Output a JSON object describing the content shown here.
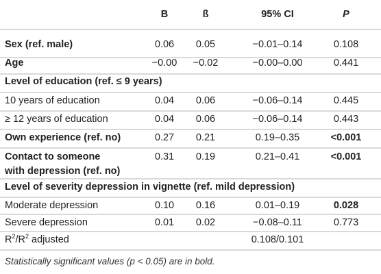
{
  "header": {
    "col_b": "B",
    "col_beta": "ß",
    "col_ci": "95% CI",
    "col_p": "P"
  },
  "rows": [
    {
      "label": "Sex (ref. male)",
      "b": "0.06",
      "beta": "0.05",
      "ci": "−0.01–0.14",
      "p": "0.108"
    },
    {
      "label": "Age",
      "b": "−0.00",
      "beta": "−0.02",
      "ci": "−0.00–0.00",
      "p": "0.441"
    },
    {
      "label": "Level of education (ref. ≤ 9 years)"
    },
    {
      "label": "10 years of education",
      "b": "0.04",
      "beta": "0.06",
      "ci": "−0.06–0.14",
      "p": "0.445"
    },
    {
      "label": "≥ 12 years of education",
      "b": "0.04",
      "beta": "0.06",
      "ci": "−0.06–0.14",
      "p": "0.443"
    },
    {
      "label": "Own experience (ref. no)",
      "b": "0.27",
      "beta": "0.21",
      "ci": "0.19–0.35",
      "p": "<0.001"
    },
    {
      "label_line1": "Contact to someone",
      "label_line2": "with depression (ref. no)",
      "b": "0.31",
      "beta": "0.19",
      "ci": "0.21–0.41",
      "p": "<0.001"
    },
    {
      "label": "Level of severity depression in vignette (ref. mild depression)"
    },
    {
      "label": "Moderate depression",
      "b": "0.10",
      "beta": "0.16",
      "ci": "0.01–0.19",
      "p": "0.028"
    },
    {
      "label": "Severe depression",
      "b": "0.01",
      "beta": "0.02",
      "ci": "−0.08–0.11",
      "p": "0.773"
    },
    {
      "label_base": "R",
      "label_sup": "2",
      "label_sep": "/R",
      "label_sup2": "2",
      "label_tail": " adjusted",
      "ci": "0.108/0.101"
    }
  ],
  "footnote": "Statistically significant values (p < 0.05) are in bold."
}
